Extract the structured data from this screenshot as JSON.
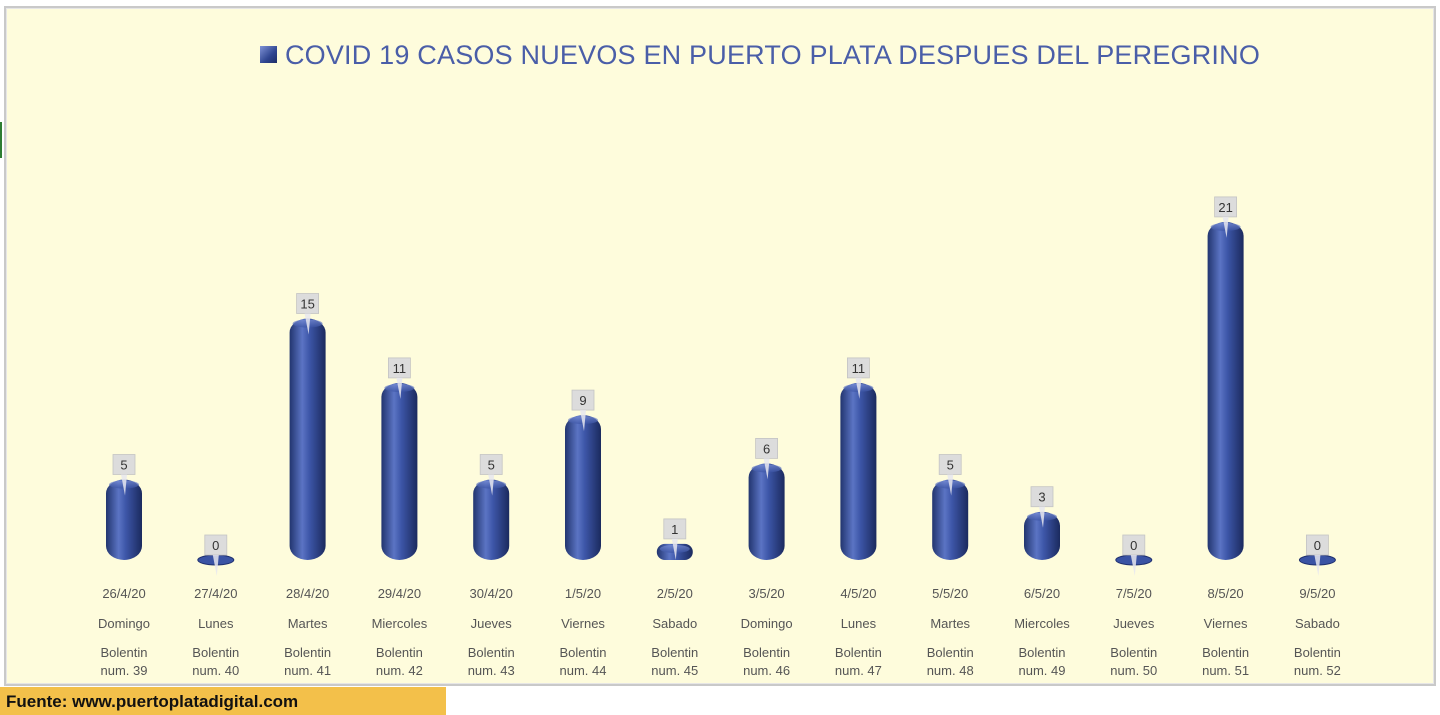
{
  "source_label": "Fuente: www.puertoplatadigital.com",
  "colors": {
    "bar": "#3a53a4",
    "bar_dark": "#1e2f6e",
    "background": "#fefcdc",
    "title": "#4a5ea8",
    "source_bg": "#f3c04a"
  },
  "chart_data": {
    "type": "bar",
    "title": "COVID 19  CASOS NUEVOS EN PUERTO PLATA DESPUES DEL PEREGRINO",
    "categories": [
      {
        "date": "26/4/20",
        "day": "Domingo",
        "bulletin1": "Bolentin",
        "bulletin2": "num. 39"
      },
      {
        "date": "27/4/20",
        "day": "Lunes",
        "bulletin1": "Bolentin",
        "bulletin2": "num. 40"
      },
      {
        "date": "28/4/20",
        "day": "Martes",
        "bulletin1": "Bolentin",
        "bulletin2": "num. 41"
      },
      {
        "date": "29/4/20",
        "day": "Miercoles",
        "bulletin1": "Bolentin",
        "bulletin2": "num. 42"
      },
      {
        "date": "30/4/20",
        "day": "Jueves",
        "bulletin1": "Bolentin",
        "bulletin2": "num. 43"
      },
      {
        "date": "1/5/20",
        "day": "Viernes",
        "bulletin1": "Bolentin",
        "bulletin2": "num. 44"
      },
      {
        "date": "2/5/20",
        "day": "Sabado",
        "bulletin1": "Bolentin",
        "bulletin2": "num. 45"
      },
      {
        "date": "3/5/20",
        "day": "Domingo",
        "bulletin1": "Bolentin",
        "bulletin2": "num. 46"
      },
      {
        "date": "4/5/20",
        "day": "Lunes",
        "bulletin1": "Bolentin",
        "bulletin2": "num. 47"
      },
      {
        "date": "5/5/20",
        "day": "Martes",
        "bulletin1": "Bolentin",
        "bulletin2": "num. 48"
      },
      {
        "date": "6/5/20",
        "day": "Miercoles",
        "bulletin1": "Bolentin",
        "bulletin2": "num. 49"
      },
      {
        "date": "7/5/20",
        "day": "Jueves",
        "bulletin1": "Bolentin",
        "bulletin2": "num. 50"
      },
      {
        "date": "8/5/20",
        "day": "Viernes",
        "bulletin1": "Bolentin",
        "bulletin2": "num. 51"
      },
      {
        "date": "9/5/20",
        "day": "Sabado",
        "bulletin1": "Bolentin",
        "bulletin2": "num. 52"
      }
    ],
    "values": [
      5,
      0,
      15,
      11,
      5,
      9,
      1,
      6,
      11,
      5,
      3,
      0,
      21,
      0
    ],
    "ylim": [
      0,
      21
    ],
    "grid": false,
    "legend": "top-center",
    "data_labels": true
  }
}
